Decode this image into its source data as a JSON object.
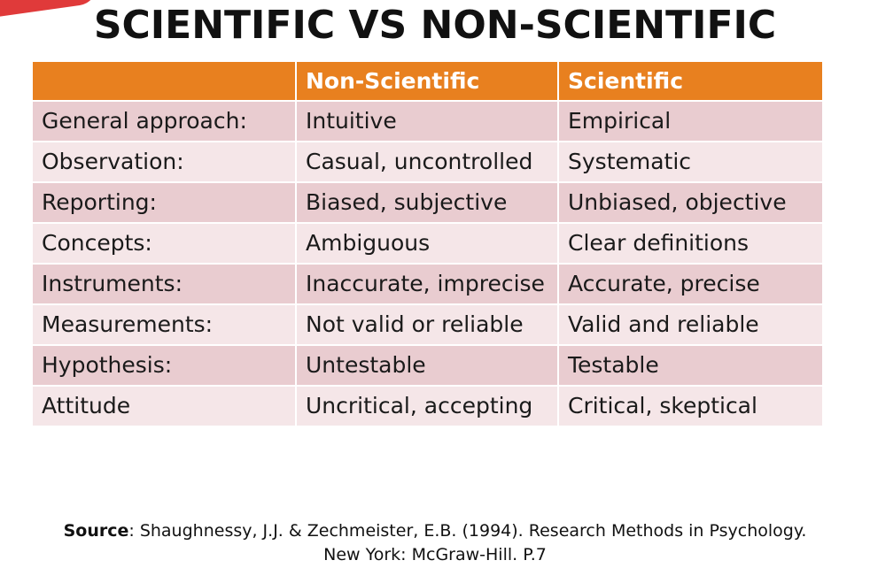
{
  "title": "SCIENTIFIC VS NON-SCIENTIFIC",
  "table": {
    "headers": [
      "",
      "Non-Scientific",
      "Scientific"
    ],
    "rows": [
      [
        "General approach:",
        "Intuitive",
        "Empirical"
      ],
      [
        "Observation:",
        "Casual, uncontrolled",
        "Systematic"
      ],
      [
        "Reporting:",
        "Biased, subjective",
        "Unbiased, objective"
      ],
      [
        "Concepts:",
        "Ambiguous",
        "Clear definitions"
      ],
      [
        "Instruments:",
        "Inaccurate, imprecise",
        "Accurate, precise"
      ],
      [
        "Measurements:",
        "Not valid or reliable",
        "Valid and reliable"
      ],
      [
        "Hypothesis:",
        "Untestable",
        "Testable"
      ],
      [
        "Attitude",
        "Uncritical, accepting",
        "Critical, skeptical"
      ]
    ]
  },
  "source": {
    "label": "Source",
    "text": ": Shaughnessy, J.J. & Zechmeister, E.B. (1994). Research Methods in Psychology. New York: McGraw-Hill. P.7"
  },
  "colors": {
    "header_bg": "#e8801f",
    "row_dark": "#e9ccd0",
    "row_light": "#f5e6e8",
    "accent": "#e03a3a"
  }
}
